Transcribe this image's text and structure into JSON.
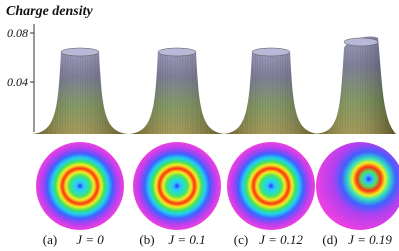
{
  "figure": {
    "axis": {
      "title": "Charge density",
      "ticks": [
        "0.08",
        "0.04"
      ]
    },
    "panels": [
      {
        "label": "(a)",
        "param": "J = 0"
      },
      {
        "label": "(b)",
        "param": "J = 0.1"
      },
      {
        "label": "(c)",
        "param": "J = 0.12"
      },
      {
        "label": "(d)",
        "param": "J = 0.19"
      }
    ]
  }
}
